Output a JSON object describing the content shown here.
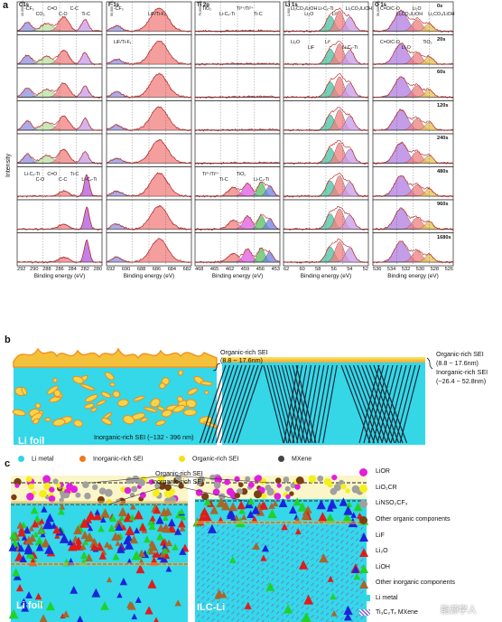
{
  "panels": {
    "a": {
      "letter": "a",
      "ylabel": "Intensity",
      "columns": [
        {
          "title": "C1s",
          "ticks": [
            "292",
            "290",
            "288",
            "286",
            "284",
            "282",
            "280"
          ],
          "xlabel": "Binding energy (eV)",
          "labels": [
            "-CF₃",
            "CO₃",
            "C=O",
            "C-O",
            "C-C",
            "Ti-C",
            "Li-Cₓ-Ti",
            "C-O",
            "C=O",
            "C-C",
            "Ti-C",
            "Li-Cₓ-Ti"
          ]
        },
        {
          "title": "F 1s",
          "ticks": [
            "692",
            "690",
            "688",
            "686",
            "684",
            "682"
          ],
          "xlabel": "Binding energy (eV)",
          "labels": [
            "-CF₃",
            "LiF/Ti-Fₓ",
            "LiF/Ti-Fₓ"
          ]
        },
        {
          "title": "Ti 2p",
          "ticks": [
            "468",
            "465",
            "462",
            "459",
            "456",
            "453"
          ],
          "xlabel": "Binding energy (eV)",
          "labels": [
            "TiO₂",
            "Li-Cₓ-Ti",
            "Ti³⁺/Ti²⁺",
            "Ti-C",
            "Ti³⁺/Ti²⁺",
            "Ti-C",
            "TiO₂",
            "Li-Cₓ-Ti"
          ]
        },
        {
          "title": "Li 1s",
          "ticks": [
            "62",
            "60",
            "58",
            "56",
            "54",
            "52"
          ],
          "xlabel": "Binding energy (eV)",
          "labels": [
            "Li₂CO₃/LiOH",
            "Li₂O",
            "Li-Cₓ-Ti",
            "Li⁰",
            "Li₂CO₃/LiOH",
            "Li₂O",
            "LiF",
            "Li⁰",
            "Li-Cₓ-Ti"
          ]
        },
        {
          "title": "O 1s",
          "ticks": [
            "536",
            "534",
            "532",
            "530",
            "528",
            "526"
          ],
          "xlabel": "Binding energy (eV)",
          "labels": [
            "C=O/C-O",
            "Li₂CO₃/LiOH",
            "Li₂O",
            "Li₂CO₃/LiOH",
            "C=O/C-O",
            "Li₂O",
            "TiO₂"
          ]
        }
      ],
      "times": [
        "0s",
        "20s",
        "60s",
        "120s",
        "240s",
        "480s",
        "960s",
        "1680s"
      ],
      "scales": [
        "10,000 c.p.s",
        "50,000 c.p.s",
        "75,000 c.p.s",
        "1,000 c.p.s",
        "50,000 c.p.s"
      ]
    },
    "b": {
      "letter": "b",
      "left_top": "Organic-rich SEI",
      "left_top_range": "(8.8 ~ 17.6nm)",
      "left_bottom": "Inorganic-rich SEI (~132 - 396 nm)",
      "left_label": "Li foil",
      "right_top": "Organic-rich SEI",
      "right_top_range": "(8.8 ~ 17.6nm)",
      "right_mid": "Inorganic-rich SEI",
      "right_mid_range": "(~26.4 ~ 52.8nm)"
    },
    "legend_b": [
      {
        "label": "Li metal",
        "color": "#2ed6e6"
      },
      {
        "label": "Inorganic-rich SEI",
        "color": "#ec7a1e"
      },
      {
        "label": "Organic-rich SEI",
        "color": "#f4e01a"
      },
      {
        "label": "MXene",
        "color": "#444444"
      }
    ],
    "c": {
      "letter": "c",
      "top_label": "Organic-rich SEI",
      "mid_label": "Inorganic-rich SEI",
      "left_label": "Li foil",
      "right_label": "ILC-Li"
    },
    "legend_c": [
      {
        "label": "LiOR",
        "color": "#e21ee0",
        "shape": "circle"
      },
      {
        "label": "LiO₂CR",
        "color": "#f5ef1a",
        "shape": "circle"
      },
      {
        "label": "LiNSO₂CF₃",
        "color": "#a0a0a0",
        "shape": "circle"
      },
      {
        "label": "Other organic components",
        "color": "#7a3f12",
        "shape": "circle"
      },
      {
        "label": "LiF",
        "color": "#1d24d8",
        "shape": "triangle"
      },
      {
        "label": "Li₂O",
        "color": "#e11b1b",
        "shape": "triangle"
      },
      {
        "label": "LiOH",
        "color": "#1fd22a",
        "shape": "triangle"
      },
      {
        "label": "Other inorganic components",
        "color": "#a8662a",
        "shape": "triangle"
      },
      {
        "label": "Li metal",
        "color": "#2ed6e6",
        "shape": "rect"
      },
      {
        "label": "Ti₃C₂Tₓ MXene",
        "color": "#8a6ecf",
        "shape": "hatch"
      }
    ],
    "watermark": "能源学人"
  }
}
